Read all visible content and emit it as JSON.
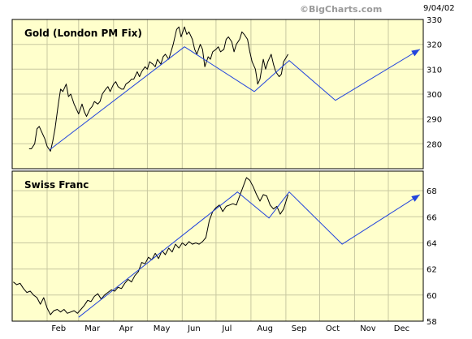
{
  "header": {
    "watermark": "©BigCharts.com",
    "date": "9/04/02"
  },
  "colors": {
    "plot_bg": "#ffffcc",
    "grid": "#c8c8a0",
    "price_line": "#000000",
    "forecast_line": "#2244dd",
    "frame_bg": "#ffffff"
  },
  "chart_data": [
    {
      "type": "line",
      "title": "Gold (London PM Fix)",
      "x_ticks": [
        "Feb",
        "Mar",
        "Apr",
        "May",
        "Jun",
        "Jul",
        "Aug",
        "Sep",
        "Oct",
        "Nov",
        "Dec"
      ],
      "ylim": [
        270,
        330
      ],
      "y_ticks": [
        280,
        290,
        300,
        310,
        320,
        330
      ],
      "grid": true,
      "series": [
        {
          "values_x": [
            "2002-01-16",
            "2002-01-18",
            "2002-01-21",
            "2002-01-23",
            "2002-01-25",
            "2002-01-28",
            "2002-01-30",
            "2002-02-01",
            "2002-02-04",
            "2002-02-06",
            "2002-02-08",
            "2002-02-11",
            "2002-02-13",
            "2002-02-15",
            "2002-02-18",
            "2002-02-20",
            "2002-02-22",
            "2002-02-25",
            "2002-02-27",
            "2002-03-01",
            "2002-03-04",
            "2002-03-06",
            "2002-03-08",
            "2002-03-11",
            "2002-03-13",
            "2002-03-15",
            "2002-03-18",
            "2002-03-20",
            "2002-03-22",
            "2002-03-25",
            "2002-03-27",
            "2002-03-29",
            "2002-04-01",
            "2002-04-03",
            "2002-04-05",
            "2002-04-08",
            "2002-04-10",
            "2002-04-12",
            "2002-04-15",
            "2002-04-17",
            "2002-04-19",
            "2002-04-22",
            "2002-04-24",
            "2002-04-26",
            "2002-04-29",
            "2002-05-01",
            "2002-05-03",
            "2002-05-06",
            "2002-05-08",
            "2002-05-10",
            "2002-05-13",
            "2002-05-15",
            "2002-05-17",
            "2002-05-20",
            "2002-05-22",
            "2002-05-24",
            "2002-05-27",
            "2002-05-29",
            "2002-05-31",
            "2002-06-03",
            "2002-06-05",
            "2002-06-07",
            "2002-06-10",
            "2002-06-12",
            "2002-06-14",
            "2002-06-17",
            "2002-06-19",
            "2002-06-21",
            "2002-06-24",
            "2002-06-26",
            "2002-06-28",
            "2002-07-01",
            "2002-07-03",
            "2002-07-05",
            "2002-07-08",
            "2002-07-10",
            "2002-07-12",
            "2002-07-15",
            "2002-07-17",
            "2002-07-19",
            "2002-07-22",
            "2002-07-24",
            "2002-07-26",
            "2002-07-29",
            "2002-07-31",
            "2002-08-02",
            "2002-08-05",
            "2002-08-07",
            "2002-08-09",
            "2002-08-12",
            "2002-08-14",
            "2002-08-16",
            "2002-08-19",
            "2002-08-21",
            "2002-08-23",
            "2002-08-26",
            "2002-08-28",
            "2002-08-30",
            "2002-09-03"
          ],
          "values": [
            278,
            278,
            280,
            286,
            287,
            284,
            282,
            279,
            277,
            281,
            286,
            296,
            302,
            301,
            304,
            299,
            300,
            296,
            294,
            292,
            296,
            293,
            291,
            294,
            295,
            297,
            296,
            297,
            300,
            302,
            303,
            301,
            304,
            305,
            303,
            302,
            302,
            304,
            305,
            306,
            306,
            309,
            307,
            309,
            311,
            310,
            313,
            312,
            311,
            314,
            312,
            315,
            316,
            314,
            317,
            320,
            326,
            327,
            323,
            327,
            324,
            325,
            322,
            318,
            316,
            320,
            318,
            311,
            315,
            314,
            317,
            318,
            319,
            317,
            318,
            322,
            323,
            321,
            317,
            320,
            322,
            325,
            324,
            322,
            317,
            313,
            310,
            304,
            306,
            314,
            310,
            313,
            316,
            312,
            309,
            307,
            308,
            313,
            316
          ]
        },
        {
          "name": "forecast",
          "values_x": [
            "2002-02-03",
            "2002-06-03",
            "2002-08-04",
            "2002-09-04",
            "2002-10-15",
            "2002-12-29"
          ],
          "values": [
            277.5,
            319,
            301,
            313.5,
            297.5,
            318
          ]
        }
      ]
    },
    {
      "type": "line",
      "title": "Swiss Franc",
      "x_ticks": [
        "Feb",
        "Mar",
        "Apr",
        "May",
        "Jun",
        "Jul",
        "Aug",
        "Sep",
        "Oct",
        "Nov",
        "Dec"
      ],
      "ylim": [
        58,
        69.5
      ],
      "y_ticks": [
        58,
        60,
        62,
        64,
        66,
        68
      ],
      "grid": true,
      "series": [
        {
          "values_x": [
            "2002-01-02",
            "2002-01-05",
            "2002-01-08",
            "2002-01-11",
            "2002-01-14",
            "2002-01-17",
            "2002-01-20",
            "2002-01-23",
            "2002-01-26",
            "2002-01-29",
            "2002-02-01",
            "2002-02-04",
            "2002-02-07",
            "2002-02-10",
            "2002-02-13",
            "2002-02-16",
            "2002-02-19",
            "2002-02-22",
            "2002-02-25",
            "2002-02-28",
            "2002-03-03",
            "2002-03-06",
            "2002-03-09",
            "2002-03-12",
            "2002-03-15",
            "2002-03-18",
            "2002-03-21",
            "2002-03-24",
            "2002-03-27",
            "2002-03-30",
            "2002-04-02",
            "2002-04-05",
            "2002-04-08",
            "2002-04-11",
            "2002-04-14",
            "2002-04-17",
            "2002-04-20",
            "2002-04-23",
            "2002-04-26",
            "2002-04-29",
            "2002-05-02",
            "2002-05-05",
            "2002-05-08",
            "2002-05-11",
            "2002-05-14",
            "2002-05-17",
            "2002-05-20",
            "2002-05-23",
            "2002-05-26",
            "2002-05-29",
            "2002-06-01",
            "2002-06-04",
            "2002-06-07",
            "2002-06-10",
            "2002-06-13",
            "2002-06-16",
            "2002-06-19",
            "2002-06-22",
            "2002-06-25",
            "2002-06-28",
            "2002-07-01",
            "2002-07-04",
            "2002-07-07",
            "2002-07-10",
            "2002-07-13",
            "2002-07-16",
            "2002-07-19",
            "2002-07-22",
            "2002-07-25",
            "2002-07-28",
            "2002-07-31",
            "2002-08-03",
            "2002-08-06",
            "2002-08-09",
            "2002-08-12",
            "2002-08-15",
            "2002-08-18",
            "2002-08-21",
            "2002-08-24",
            "2002-08-27",
            "2002-08-30",
            "2002-09-03"
          ],
          "values": [
            61.0,
            60.8,
            60.9,
            60.5,
            60.2,
            60.3,
            60.0,
            59.8,
            59.3,
            59.8,
            59.0,
            58.5,
            58.8,
            58.9,
            58.7,
            58.9,
            58.6,
            58.7,
            58.8,
            58.6,
            58.9,
            59.2,
            59.6,
            59.5,
            59.9,
            60.1,
            59.7,
            60.0,
            60.2,
            60.4,
            60.3,
            60.6,
            60.5,
            60.9,
            61.2,
            61.0,
            61.5,
            61.8,
            62.5,
            62.4,
            62.9,
            62.7,
            63.2,
            62.8,
            63.4,
            63.1,
            63.6,
            63.3,
            63.9,
            63.6,
            64.0,
            63.8,
            64.1,
            63.9,
            64.0,
            63.9,
            64.1,
            64.4,
            65.7,
            66.4,
            66.7,
            66.9,
            66.4,
            66.8,
            66.9,
            67.0,
            66.9,
            67.6,
            68.3,
            69.0,
            68.8,
            68.3,
            67.7,
            67.2,
            67.7,
            67.6,
            66.9,
            66.6,
            66.8,
            66.2,
            66.6,
            67.7
          ]
        },
        {
          "name": "forecast",
          "values_x": [
            "2002-03-01",
            "2002-07-20",
            "2002-08-17",
            "2002-09-04",
            "2002-10-21",
            "2002-12-29"
          ],
          "values": [
            58.3,
            67.9,
            65.9,
            67.9,
            63.9,
            67.7
          ]
        }
      ]
    }
  ]
}
